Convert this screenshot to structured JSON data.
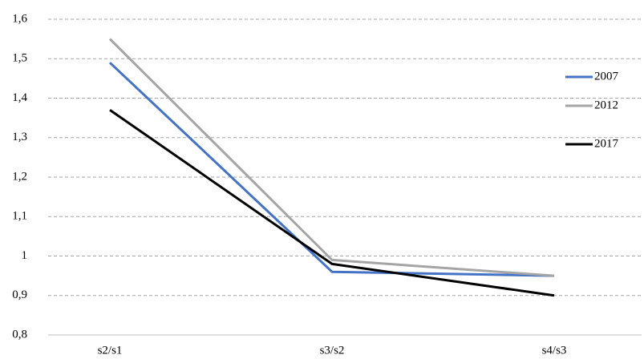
{
  "chart_data": {
    "type": "line",
    "categories": [
      "s2/s1",
      "s3/s2",
      "s4/s3"
    ],
    "series": [
      {
        "name": "2007",
        "color": "#4472c4",
        "values": [
          1.49,
          0.96,
          0.95
        ]
      },
      {
        "name": "2012",
        "color": "#a5a5a5",
        "values": [
          1.55,
          0.99,
          0.95
        ]
      },
      {
        "name": "2017",
        "color": "#000000",
        "values": [
          1.37,
          0.98,
          0.9
        ]
      }
    ],
    "ylim": [
      0.8,
      1.6
    ],
    "yticks": [
      {
        "value": 0.8,
        "label": "0,8"
      },
      {
        "value": 0.9,
        "label": "0,9"
      },
      1,
      {
        "value": 1.1,
        "label": "1,1"
      },
      {
        "value": 1.2,
        "label": "1,2"
      },
      {
        "value": 1.3,
        "label": "1,3"
      },
      {
        "value": 1.4,
        "label": "1,4"
      },
      {
        "value": 1.5,
        "label": "1,5"
      },
      {
        "value": 1.6,
        "label": "1,6"
      }
    ],
    "grid": true,
    "legend": "right"
  }
}
